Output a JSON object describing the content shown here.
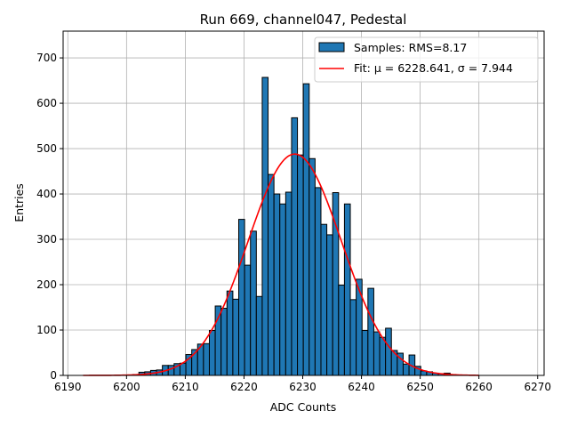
{
  "chart_data": {
    "type": "bar",
    "title": "Run 669, channel047, Pedestal",
    "xlabel": "ADC Counts",
    "ylabel": "Entries",
    "xlim": [
      6189.2,
      6271.1
    ],
    "ylim": [
      0,
      759
    ],
    "xticks": [
      6190,
      6200,
      6210,
      6220,
      6230,
      6240,
      6250,
      6260,
      6270
    ],
    "yticks": [
      0,
      100,
      200,
      300,
      400,
      500,
      600,
      700
    ],
    "grid": true,
    "legend_placement": "top-right",
    "bin_width": 1,
    "bin_start": 6201.1,
    "values": [
      2,
      7,
      8,
      11,
      12,
      22,
      22,
      26,
      27,
      46,
      57,
      69,
      70,
      99,
      153,
      148,
      186,
      168,
      344,
      243,
      318,
      174,
      657,
      443,
      400,
      378,
      404,
      568,
      486,
      643,
      478,
      414,
      333,
      310,
      403,
      199,
      378,
      167,
      212,
      99,
      192,
      96,
      84,
      104,
      55,
      49,
      25,
      45,
      20,
      10,
      8,
      5,
      4,
      5,
      2
    ],
    "bar_color": "#1f77b4",
    "fit": {
      "mu": 6228.641,
      "sigma": 7.944,
      "amplitude": 488,
      "range": [
        6192.6,
        6260
      ],
      "color": "#ff0000"
    },
    "legend": [
      {
        "label": "Samples: RMS=8.17",
        "kind": "patch"
      },
      {
        "label": "Fit: μ = 6228.641, σ = 7.944",
        "kind": "line"
      }
    ]
  }
}
